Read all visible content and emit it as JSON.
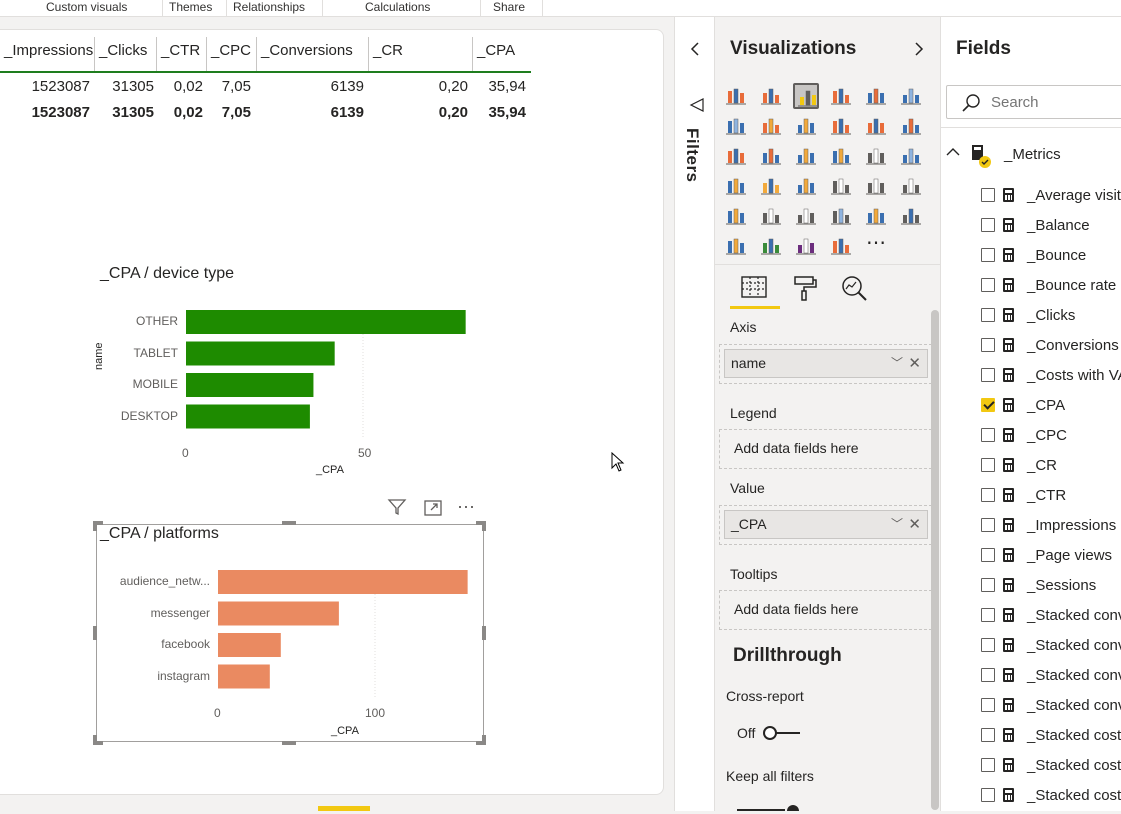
{
  "ribbon": {
    "items": [
      "Custom visuals",
      "Themes",
      "Relationships",
      "Calculations",
      "Share"
    ]
  },
  "table": {
    "headers": [
      "_Impressions",
      "_Clicks",
      "_CTR",
      "_CPC",
      "_Conversions",
      "_CR",
      "_CPA"
    ],
    "row": [
      "1523087",
      "31305",
      "0,02",
      "7,05",
      "6139",
      "0,20",
      "35,94"
    ],
    "total": [
      "1523087",
      "31305",
      "0,02",
      "7,05",
      "6139",
      "0,20",
      "35,94"
    ]
  },
  "chart_data": [
    {
      "type": "bar",
      "orientation": "horizontal",
      "title": "_CPA / device type",
      "xlabel": "_CPA",
      "ylabel": "name",
      "categories": [
        "OTHER",
        "TABLET",
        "MOBILE",
        "DESKTOP"
      ],
      "values": [
        79,
        42,
        36,
        35
      ],
      "xticks": [
        "0",
        "50"
      ],
      "xlim": [
        0,
        100
      ],
      "color": "#1e8b00"
    },
    {
      "type": "bar",
      "orientation": "horizontal",
      "title": "_CPA / platforms",
      "xlabel": "_CPA",
      "ylabel": "",
      "categories": [
        "audience_netw...",
        "messenger",
        "facebook",
        "instagram"
      ],
      "values": [
        159,
        77,
        40,
        33
      ],
      "xticks": [
        "0",
        "100"
      ],
      "xlim": [
        0,
        200
      ],
      "color": "#ea8a61"
    }
  ],
  "visual_toolbar": {
    "filter_icon": "funnel-icon",
    "focus_icon": "focus-mode-icon",
    "more_label": "⋯"
  },
  "filters": {
    "label": "Filters"
  },
  "visualizations": {
    "title": "Visualizations",
    "more_label": "⋯",
    "wells": {
      "axis_label": "Axis",
      "axis_field": "name",
      "legend_label": "Legend",
      "legend_placeholder": "Add data fields here",
      "value_label": "Value",
      "value_field": "_CPA",
      "tooltips_label": "Tooltips",
      "tooltips_placeholder": "Add data fields here"
    },
    "drillthrough": {
      "title": "Drillthrough",
      "cross_report_label": "Cross-report",
      "cross_report_value": "Off",
      "keep_filters_label": "Keep all filters"
    }
  },
  "fields": {
    "title": "Fields",
    "search_placeholder": "Search",
    "table_name": "_Metrics",
    "items": [
      {
        "label": "_Average visit...",
        "checked": false
      },
      {
        "label": "_Balance",
        "checked": false
      },
      {
        "label": "_Bounce",
        "checked": false
      },
      {
        "label": "_Bounce rate",
        "checked": false
      },
      {
        "label": "_Clicks",
        "checked": false
      },
      {
        "label": "_Conversions",
        "checked": false
      },
      {
        "label": "_Costs with VAT",
        "checked": false
      },
      {
        "label": "_CPA",
        "checked": true
      },
      {
        "label": "_CPC",
        "checked": false
      },
      {
        "label": "_CR",
        "checked": false
      },
      {
        "label": "_CTR",
        "checked": false
      },
      {
        "label": "_Impressions",
        "checked": false
      },
      {
        "label": "_Page views",
        "checked": false
      },
      {
        "label": "_Sessions",
        "checked": false
      },
      {
        "label": "_Stacked conv...",
        "checked": false
      },
      {
        "label": "_Stacked conv...",
        "checked": false
      },
      {
        "label": "_Stacked conv...",
        "checked": false
      },
      {
        "label": "_Stacked conv...",
        "checked": false
      },
      {
        "label": "_Stacked cost...",
        "checked": false
      },
      {
        "label": "_Stacked cost...",
        "checked": false
      },
      {
        "label": "_Stacked cost...",
        "checked": false
      }
    ]
  }
}
